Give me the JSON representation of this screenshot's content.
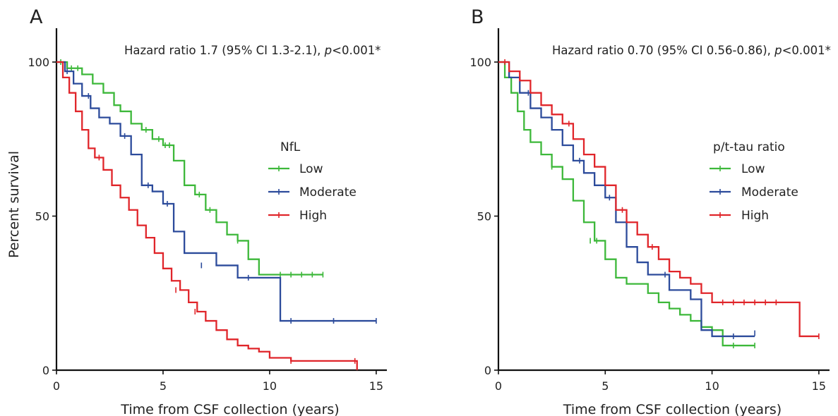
{
  "chart_data": [
    {
      "type": "line",
      "panel_label": "A",
      "xlabel": "Time from CSF collection (years)",
      "ylabel": "Percent survival",
      "xlim": [
        0,
        15.5
      ],
      "ylim": [
        0,
        100
      ],
      "x_ticks": [
        0,
        5,
        10,
        15
      ],
      "y_ticks": [
        0,
        50,
        100
      ],
      "annotation": {
        "prefix": "Hazard ratio 1.7 (95% CI 1.3-2.1), ",
        "p_symbol": "p",
        "suffix": "<0.001*"
      },
      "legend": {
        "title": "NfL",
        "position": "center-right"
      },
      "series": [
        {
          "name": "Low",
          "color": "#3db83a",
          "x": [
            0,
            0.5,
            1.2,
            1.7,
            2.2,
            2.7,
            3.0,
            3.5,
            4.0,
            4.5,
            5.0,
            5.5,
            6.0,
            6.5,
            7.0,
            7.5,
            8.0,
            8.5,
            9.0,
            9.5,
            12.5
          ],
          "y": [
            100,
            98,
            96,
            93,
            90,
            86,
            84,
            80,
            78,
            75,
            73,
            68,
            60,
            57,
            52,
            48,
            44,
            42,
            36,
            31,
            31
          ],
          "censors": [
            [
              0.2,
              100
            ],
            [
              0.7,
              98
            ],
            [
              1.0,
              98
            ],
            [
              4.2,
              78
            ],
            [
              4.8,
              75
            ],
            [
              5.1,
              73
            ],
            [
              5.3,
              73
            ],
            [
              6.7,
              57
            ],
            [
              7.2,
              52
            ],
            [
              8.5,
              42
            ],
            [
              10.5,
              31
            ],
            [
              11.0,
              31
            ],
            [
              11.5,
              31
            ],
            [
              12.0,
              31
            ],
            [
              12.5,
              31
            ]
          ]
        },
        {
          "name": "Moderate",
          "color": "#2c4b9b",
          "x": [
            0,
            0.4,
            0.8,
            1.2,
            1.6,
            2.0,
            2.5,
            3.0,
            3.5,
            4.0,
            4.5,
            5.0,
            5.5,
            6.0,
            7.5,
            8.5,
            10.5,
            15.0
          ],
          "y": [
            100,
            97,
            93,
            89,
            85,
            82,
            80,
            76,
            70,
            60,
            58,
            54,
            45,
            38,
            34,
            30,
            16,
            16
          ],
          "censors": [
            [
              0.5,
              97
            ],
            [
              1.5,
              89
            ],
            [
              3.2,
              76
            ],
            [
              4.3,
              60
            ],
            [
              5.2,
              54
            ],
            [
              6.8,
              34
            ],
            [
              9.0,
              30
            ],
            [
              11.0,
              16
            ],
            [
              13.0,
              16
            ],
            [
              15.0,
              16
            ]
          ]
        },
        {
          "name": "High",
          "color": "#e0252a",
          "x": [
            0,
            0.3,
            0.6,
            0.9,
            1.2,
            1.5,
            1.8,
            2.2,
            2.6,
            3.0,
            3.4,
            3.8,
            4.2,
            4.6,
            5.0,
            5.4,
            5.8,
            6.2,
            6.6,
            7.0,
            7.5,
            8.0,
            8.5,
            9.0,
            9.5,
            10.0,
            11.0,
            14.1
          ],
          "y": [
            100,
            95,
            90,
            84,
            78,
            72,
            69,
            65,
            60,
            56,
            52,
            47,
            43,
            38,
            33,
            29,
            26,
            22,
            19,
            16,
            13,
            10,
            8,
            7,
            6,
            4,
            3,
            0
          ],
          "censors": [
            [
              2.0,
              69
            ],
            [
              5.6,
              26
            ],
            [
              6.5,
              19
            ],
            [
              11.0,
              3
            ],
            [
              14.0,
              3
            ]
          ]
        }
      ]
    },
    {
      "type": "line",
      "panel_label": "B",
      "xlabel": "Time from CSF collection (years)",
      "ylabel": "",
      "xlim": [
        0,
        15.5
      ],
      "ylim": [
        0,
        100
      ],
      "x_ticks": [
        0,
        5,
        10,
        15
      ],
      "y_ticks": [
        0,
        50,
        100
      ],
      "annotation": {
        "prefix": "Hazard ratio 0.70 (95% CI 0.56-0.86), ",
        "p_symbol": "p",
        "suffix": "<0.001*"
      },
      "legend": {
        "title": "p/t-tau ratio",
        "position": "center-right"
      },
      "series": [
        {
          "name": "Low",
          "color": "#3db83a",
          "x": [
            0,
            0.3,
            0.6,
            0.9,
            1.2,
            1.5,
            2.0,
            2.5,
            3.0,
            3.5,
            4.0,
            4.5,
            5.0,
            5.5,
            6.0,
            7.0,
            7.5,
            8.0,
            8.5,
            9.0,
            9.5,
            10.0,
            10.5,
            12.0
          ],
          "y": [
            100,
            95,
            90,
            84,
            78,
            74,
            70,
            66,
            62,
            55,
            48,
            42,
            36,
            30,
            28,
            25,
            22,
            20,
            18,
            16,
            14,
            13,
            8,
            8
          ],
          "censors": [
            [
              2.5,
              66
            ],
            [
              4.3,
              42
            ],
            [
              4.6,
              42
            ],
            [
              11.0,
              8
            ],
            [
              12.0,
              8
            ]
          ]
        },
        {
          "name": "Moderate",
          "color": "#2c4b9b",
          "x": [
            0,
            0.5,
            1.0,
            1.5,
            2.0,
            2.5,
            3.0,
            3.5,
            4.0,
            4.5,
            5.0,
            5.5,
            6.0,
            6.5,
            7.0,
            8.0,
            9.0,
            9.5,
            10.0,
            12.0
          ],
          "y": [
            100,
            95,
            90,
            85,
            82,
            78,
            73,
            68,
            64,
            60,
            56,
            48,
            40,
            35,
            31,
            26,
            23,
            13,
            11,
            11
          ],
          "censors": [
            [
              1.4,
              90
            ],
            [
              3.8,
              68
            ],
            [
              5.2,
              56
            ],
            [
              7.8,
              31
            ],
            [
              11.0,
              11
            ],
            [
              12.0,
              12
            ]
          ]
        },
        {
          "name": "High",
          "color": "#e0252a",
          "x": [
            0,
            0.5,
            1.0,
            1.5,
            2.0,
            2.5,
            3.0,
            3.5,
            4.0,
            4.5,
            5.0,
            5.5,
            6.0,
            6.5,
            7.0,
            7.5,
            8.0,
            8.5,
            9.0,
            9.5,
            10.0,
            14.1,
            15.0
          ],
          "y": [
            100,
            97,
            94,
            90,
            86,
            83,
            80,
            75,
            70,
            66,
            60,
            52,
            48,
            44,
            40,
            36,
            32,
            30,
            28,
            25,
            22,
            11,
            11
          ],
          "censors": [
            [
              0.3,
              100
            ],
            [
              3.3,
              80
            ],
            [
              5.8,
              52
            ],
            [
              7.2,
              40
            ],
            [
              10.5,
              22
            ],
            [
              11.0,
              22
            ],
            [
              11.5,
              22
            ],
            [
              12.0,
              22
            ],
            [
              12.5,
              22
            ],
            [
              13.0,
              22
            ],
            [
              15.0,
              11
            ]
          ]
        }
      ]
    }
  ]
}
